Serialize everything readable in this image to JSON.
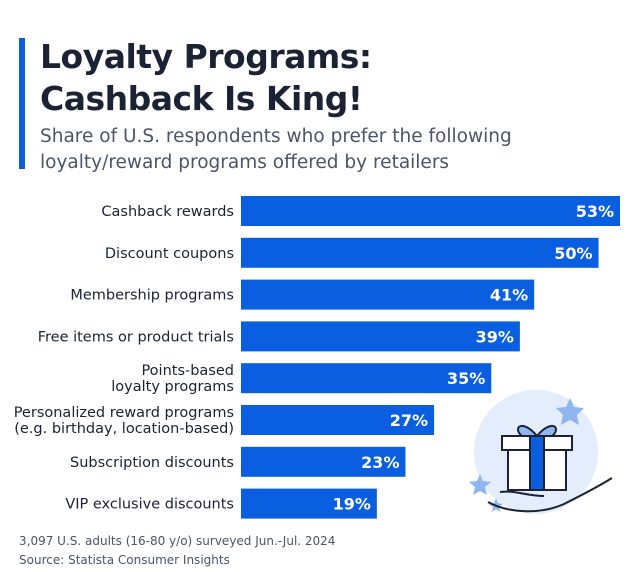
{
  "header": {
    "title_lines": [
      "Loyalty Programs:",
      "Cashback Is King!"
    ],
    "subtitle_lines": [
      "Share of U.S. respondents who prefer the following",
      "loyalty/reward programs offered by retailers"
    ]
  },
  "chart_data": {
    "type": "bar",
    "orientation": "horizontal",
    "categories": [
      [
        "Cashback rewards"
      ],
      [
        "Discount coupons"
      ],
      [
        "Membership programs"
      ],
      [
        "Free items or product trials"
      ],
      [
        "Points-based",
        "loyalty programs"
      ],
      [
        "Personalized reward programs",
        "(e.g. birthday, location-based)"
      ],
      [
        "Subscription discounts"
      ],
      [
        "VIP exclusive discounts"
      ]
    ],
    "values": [
      53,
      50,
      41,
      39,
      35,
      27,
      23,
      19
    ],
    "value_labels": [
      "53%",
      "50%",
      "41%",
      "39%",
      "35%",
      "27%",
      "23%",
      "19%"
    ],
    "unit": "%",
    "bar_color": "#0a5fe0",
    "grid": false,
    "legend": "none"
  },
  "footer": {
    "lines": [
      "3,097 U.S. adults (16-80 y/o) surveyed Jun.-Jul. 2024",
      "Source: Statista Consumer Insights"
    ]
  },
  "illustration": {
    "icon": "gift-in-hand-icon"
  }
}
